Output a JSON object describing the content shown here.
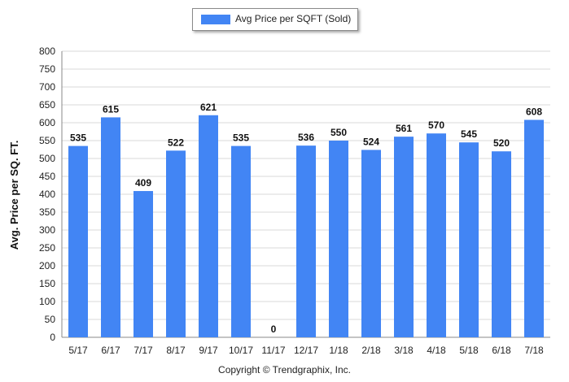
{
  "chart_data": {
    "type": "bar",
    "categories": [
      "5/17",
      "6/17",
      "7/17",
      "8/17",
      "9/17",
      "10/17",
      "11/17",
      "12/17",
      "1/18",
      "2/18",
      "3/18",
      "4/18",
      "5/18",
      "6/18",
      "7/18"
    ],
    "series": [
      {
        "name": "Avg Price per SQFT (Sold)",
        "values": [
          535,
          615,
          409,
          522,
          621,
          535,
          0,
          536,
          550,
          524,
          561,
          570,
          545,
          520,
          608
        ]
      }
    ],
    "ylabel": "Avg. Price per SQ. FT.",
    "xlabel": "",
    "ylim": [
      0,
      800
    ],
    "yticks": [
      0,
      50,
      100,
      150,
      200,
      250,
      300,
      350,
      400,
      450,
      500,
      550,
      600,
      650,
      700,
      750,
      800
    ],
    "grid": true,
    "legend_position": "top-center",
    "bar_color": "#4285f4"
  },
  "legend": {
    "label": "Avg Price per SQFT (Sold)"
  },
  "footer": {
    "copyright": "Copyright © Trendgraphix, Inc."
  }
}
